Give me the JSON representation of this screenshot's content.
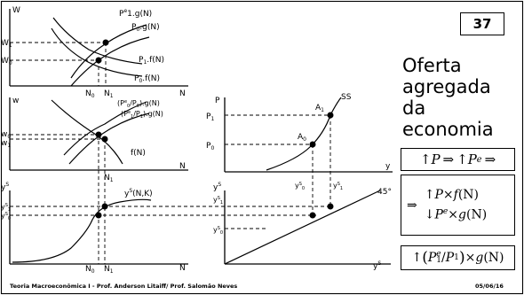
{
  "slide": {
    "number": "37",
    "title_lines": [
      "Oferta",
      "agregada",
      "da",
      "economia"
    ],
    "footer_left": "Teoria Macroeconômica I - Prof. Anderson Litaiff/ Prof. Salomão Neves",
    "footer_right": "05/06/16"
  },
  "formulas": {
    "box1": {
      "arrow1": "↑",
      "p": "P",
      "implies": "⇒",
      "arrow2": "↑",
      "pe": "P",
      "pe_sup": "e",
      "implies2": "⇒"
    },
    "box2": {
      "implies": "⇒",
      "line1_arrow": "↑",
      "line1_p": "P",
      "line1_times": "×",
      "line1_f": "f",
      "line1_n": "(N)",
      "line2_arrow": "↓",
      "line2_p": "P",
      "line2_sup": "e",
      "line2_times": "×",
      "line2_g": "g",
      "line2_n": "(N)"
    },
    "box3": {
      "arrow": "↑",
      "open": "(",
      "p1e": "P",
      "p1e_sup": "e",
      "p1e_sub": "1",
      "slash": "/",
      "p1": "P",
      "p1_sub": "1",
      "close": ")",
      "times": "×",
      "g": "g",
      "n": "(N)"
    }
  },
  "panel_labor_market": {
    "y_axis": "W",
    "x_axis": "N",
    "w1": "W",
    "w1_sub": "1",
    "w0": "W",
    "w0_sub": "0",
    "n0": "N",
    "n0_sub": "0",
    "n1": "N",
    "n1_sub": "1",
    "curve_supply1_pre": "P",
    "curve_supply1_sup": "e",
    "curve_supply1_post": "1.g(N)",
    "curve_supply0_pre": "P",
    "curve_supply0_sub": "0",
    "curve_supply0_post": ".g(N)",
    "curve_demand1": "P",
    "curve_demand1_sub": "1",
    "curve_demand1_post": ".f(N)",
    "curve_demand0": "P",
    "curve_demand0_sub": "0",
    "curve_demand0_post": ".f(N)"
  },
  "panel_real_wage": {
    "y_axis": "w",
    "x_axis": "N",
    "w0": "w",
    "w0_sub": "0",
    "w1": "w",
    "w1_sub": "1",
    "n1": "N",
    "n1_sub": "1",
    "curve_supply0_a": "(P",
    "curve_supply0_sup": "e",
    "curve_supply0_sub": "0",
    "curve_supply0_b": "/P",
    "curve_supply0_sub2": "0",
    "curve_supply0_c": ").g(N)",
    "curve_supply1_a": "(P",
    "curve_supply1_sup": "e",
    "curve_supply1_sub": "1",
    "curve_supply1_b": "/P",
    "curve_supply1_sub2": "1",
    "curve_supply1_c": ").g(N)",
    "curve_demand": "f(N)"
  },
  "panel_production": {
    "y_axis": "y",
    "y_axis_sup": "S",
    "x_axis": "N",
    "y1": "y",
    "y1_sup": "S",
    "y1_sub": "1",
    "y0": "y",
    "y0_sup": "S",
    "y0_sub": "0",
    "n0": "N",
    "n0_sub": "0",
    "n1": "N",
    "n1_sub": "1",
    "curve": "y",
    "curve_sup": "S",
    "curve_post": "(N,K)"
  },
  "panel_aggregate_supply": {
    "y_axis": "P",
    "x_axis": "y",
    "p1": "P",
    "p1_sub": "1",
    "p0": "P",
    "p0_sub": "0",
    "a1": "A",
    "a1_sub": "1",
    "a0": "A",
    "a0_sub": "0",
    "ys0": "y",
    "ys0_sup": "S",
    "ys0_sub": "0",
    "ys1": "y",
    "ys1_sup": "S",
    "ys1_sub": "1",
    "curve": "SS"
  },
  "panel_45deg": {
    "y_axis": "y",
    "y_axis_sup": "S",
    "x_axis": "y",
    "x_axis_sup": "S",
    "ys1": "y",
    "ys1_sup": "S",
    "ys1_sub": "1",
    "ys0": "y",
    "ys0_sup": "S",
    "ys0_sub": "0",
    "angle": "45°"
  }
}
